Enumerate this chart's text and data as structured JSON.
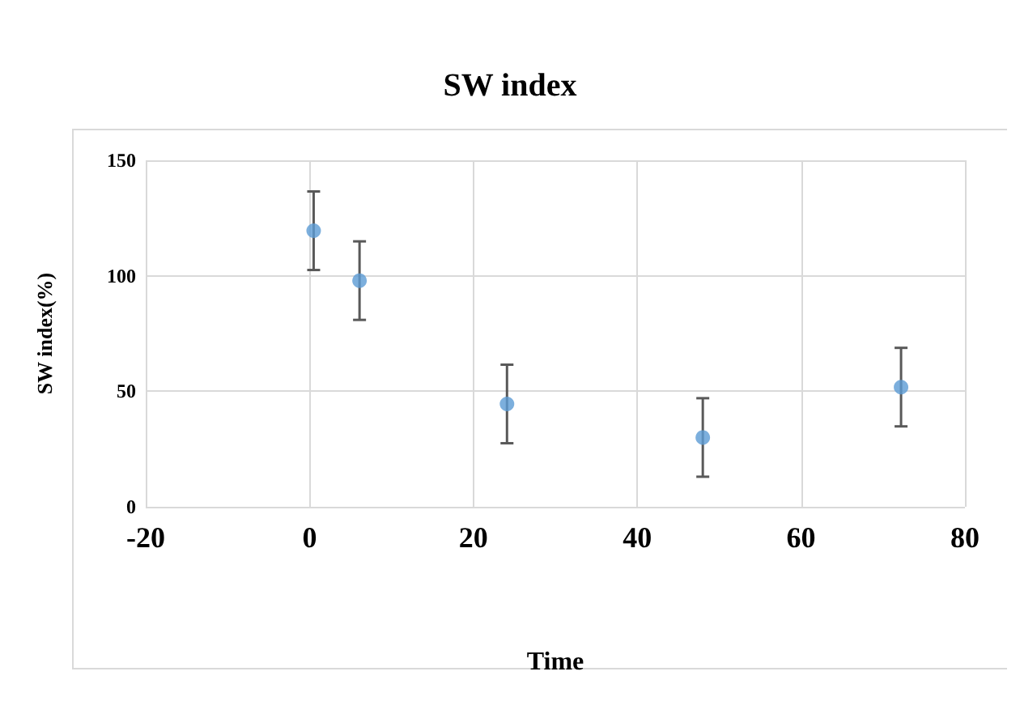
{
  "chart_data": {
    "type": "scatter",
    "title": "SW index",
    "xlabel": "Time",
    "ylabel": "SW index(%)",
    "x": [
      0.5,
      6.1,
      24.1,
      48,
      72.2
    ],
    "values": [
      119.5,
      97.9,
      44.5,
      30,
      51.8
    ],
    "errors": [
      17,
      17,
      17,
      17,
      17
    ],
    "color": "#5b9bd5",
    "xlim": [
      -20,
      80
    ],
    "xticks": [
      -20,
      0,
      20,
      40,
      60,
      80
    ],
    "ylim": [
      0,
      150
    ],
    "yticks": [
      0,
      50,
      100,
      150
    ],
    "grid": true,
    "marker": "circle"
  }
}
